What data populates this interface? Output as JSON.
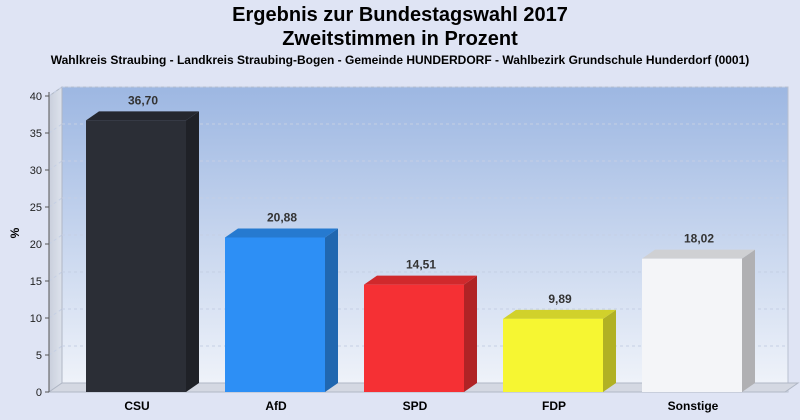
{
  "header": {
    "title_line1": "Ergebnis zur Bundestagswahl 2017",
    "title_line2": "Zweitstimmen in Prozent",
    "subtitle": "Wahlkreis Straubing - Landkreis Straubing-Bogen - Gemeinde HUNDERDORF - Wahlbezirk Grundschule Hunderdorf (0001)"
  },
  "chart_data": {
    "type": "bar",
    "title": "Ergebnis zur Bundestagswahl 2017",
    "subtitle": "Zweitstimmen in Prozent",
    "categories": [
      "CSU",
      "AfD",
      "SPD",
      "FDP",
      "Sonstige"
    ],
    "values": [
      36.7,
      20.88,
      14.51,
      9.89,
      18.02
    ],
    "value_labels": [
      "36,70",
      "20,88",
      "14,51",
      "9,89",
      "18,02"
    ],
    "colors": [
      "#2b2e36",
      "#2d8ff5",
      "#f53034",
      "#f6f632",
      "#f4f5f8"
    ],
    "ylabel": "%",
    "xlabel": "",
    "ylim": [
      0,
      40
    ],
    "yticks": [
      0,
      5,
      10,
      15,
      20,
      25,
      30,
      35,
      40
    ],
    "grid": true,
    "legend": "none"
  }
}
